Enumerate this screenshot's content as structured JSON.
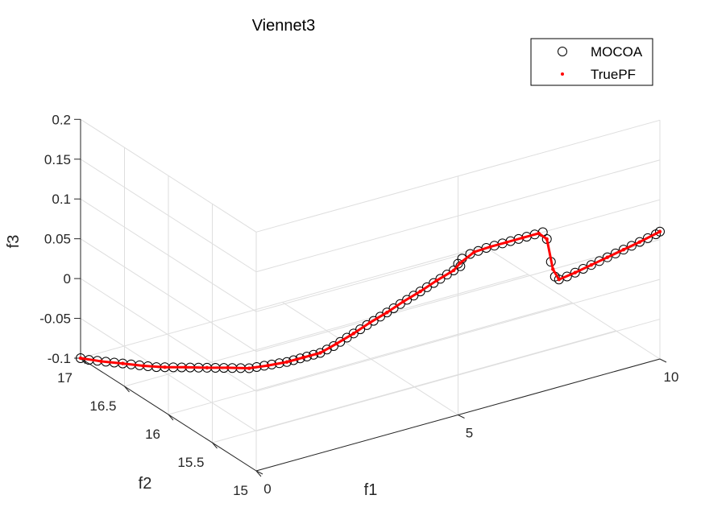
{
  "chart_data": {
    "type": "scatter",
    "title": "Viennet3",
    "xlabel": "f1",
    "ylabel": "f2",
    "zlabel": "f3",
    "xlim": [
      0,
      10
    ],
    "ylim": [
      15,
      17
    ],
    "zlim": [
      -0.1,
      0.2
    ],
    "xticks": [
      0,
      5,
      10
    ],
    "yticks": [
      15,
      15.5,
      16,
      16.5,
      17
    ],
    "zticks": [
      -0.1,
      -0.05,
      0,
      0.05,
      0.1,
      0.15,
      0.2
    ],
    "xtick_labels": [
      "0",
      "5",
      "10"
    ],
    "ytick_labels": [
      "15",
      "15.5",
      "16",
      "16.5",
      "17"
    ],
    "ztick_labels": [
      "-0.1",
      "-0.05",
      "0",
      "0.05",
      "0.1",
      "0.15",
      "0.2"
    ],
    "grid": true,
    "legend_position": "top-right",
    "legend": [
      "MOCOA",
      "TruePF"
    ],
    "series": [
      {
        "name": "MOCOA",
        "marker": "circle",
        "color": "#000000",
        "points": [
          [
            0.0,
            17.0,
            -0.1
          ],
          [
            0.1,
            16.95,
            -0.1
          ],
          [
            0.2,
            16.9,
            -0.099
          ],
          [
            0.3,
            16.85,
            -0.098
          ],
          [
            0.4,
            16.8,
            -0.097
          ],
          [
            0.5,
            16.75,
            -0.096
          ],
          [
            0.6,
            16.7,
            -0.095
          ],
          [
            0.7,
            16.65,
            -0.094
          ],
          [
            0.8,
            16.6,
            -0.093
          ],
          [
            0.9,
            16.55,
            -0.092
          ],
          [
            1.0,
            16.5,
            -0.09
          ],
          [
            1.1,
            16.45,
            -0.088
          ],
          [
            1.2,
            16.4,
            -0.086
          ],
          [
            1.3,
            16.35,
            -0.084
          ],
          [
            1.4,
            16.3,
            -0.082
          ],
          [
            1.5,
            16.25,
            -0.08
          ],
          [
            1.6,
            16.2,
            -0.078
          ],
          [
            1.7,
            16.15,
            -0.076
          ],
          [
            1.8,
            16.1,
            -0.074
          ],
          [
            1.9,
            16.05,
            -0.072
          ],
          [
            2.0,
            16.0,
            -0.07
          ],
          [
            2.1,
            15.96,
            -0.067
          ],
          [
            2.2,
            15.92,
            -0.064
          ],
          [
            2.3,
            15.88,
            -0.061
          ],
          [
            2.4,
            15.84,
            -0.058
          ],
          [
            2.5,
            15.8,
            -0.055
          ],
          [
            2.6,
            15.77,
            -0.052
          ],
          [
            2.7,
            15.74,
            -0.049
          ],
          [
            2.8,
            15.71,
            -0.046
          ],
          [
            2.9,
            15.68,
            -0.043
          ],
          [
            3.0,
            15.65,
            -0.04
          ],
          [
            3.1,
            15.62,
            -0.035
          ],
          [
            3.2,
            15.59,
            -0.03
          ],
          [
            3.3,
            15.56,
            -0.024
          ],
          [
            3.4,
            15.53,
            -0.018
          ],
          [
            3.5,
            15.5,
            -0.012
          ],
          [
            3.6,
            15.47,
            -0.006
          ],
          [
            3.7,
            15.44,
            0.0
          ],
          [
            3.8,
            15.41,
            0.006
          ],
          [
            3.9,
            15.38,
            0.012
          ],
          [
            4.0,
            15.35,
            0.018
          ],
          [
            4.1,
            15.32,
            0.024
          ],
          [
            4.2,
            15.29,
            0.03
          ],
          [
            4.3,
            15.26,
            0.036
          ],
          [
            4.4,
            15.23,
            0.042
          ],
          [
            4.5,
            15.2,
            0.048
          ],
          [
            4.6,
            15.17,
            0.054
          ],
          [
            4.7,
            15.14,
            0.06
          ],
          [
            4.8,
            15.11,
            0.066
          ],
          [
            4.9,
            15.08,
            0.072
          ],
          [
            5.0,
            15.05,
            0.078
          ],
          [
            5.1,
            15.02,
            0.084
          ],
          [
            5.0,
            15.0,
            0.09
          ],
          [
            5.1,
            15.0,
            0.095
          ],
          [
            5.3,
            15.0,
            0.098
          ],
          [
            5.5,
            15.0,
            0.099
          ],
          [
            5.7,
            15.0,
            0.1
          ],
          [
            5.9,
            15.0,
            0.1
          ],
          [
            6.1,
            15.0,
            0.1
          ],
          [
            6.3,
            15.0,
            0.1
          ],
          [
            6.5,
            15.0,
            0.1
          ],
          [
            6.7,
            15.0,
            0.1
          ],
          [
            6.9,
            15.0,
            0.1
          ],
          [
            7.1,
            15.0,
            0.1
          ],
          [
            7.2,
            15.0,
            0.09
          ],
          [
            7.3,
            15.0,
            0.06
          ],
          [
            7.4,
            15.0,
            0.04
          ],
          [
            7.5,
            15.0,
            0.035
          ],
          [
            7.7,
            15.0,
            0.036
          ],
          [
            7.9,
            15.0,
            0.038
          ],
          [
            8.1,
            15.0,
            0.04
          ],
          [
            8.3,
            15.0,
            0.042
          ],
          [
            8.5,
            15.0,
            0.044
          ],
          [
            8.7,
            15.0,
            0.046
          ],
          [
            8.9,
            15.0,
            0.048
          ],
          [
            9.1,
            15.0,
            0.05
          ],
          [
            9.3,
            15.0,
            0.052
          ],
          [
            9.5,
            15.0,
            0.054
          ],
          [
            9.7,
            15.0,
            0.056
          ],
          [
            9.9,
            15.0,
            0.058
          ],
          [
            10.0,
            15.0,
            0.06
          ]
        ]
      },
      {
        "name": "TruePF",
        "marker": "dot",
        "color": "#ff0000",
        "points": [
          [
            0.0,
            17.0,
            -0.1
          ],
          [
            0.25,
            16.88,
            -0.099
          ],
          [
            0.5,
            16.75,
            -0.096
          ],
          [
            0.75,
            16.63,
            -0.094
          ],
          [
            1.0,
            16.5,
            -0.09
          ],
          [
            1.25,
            16.38,
            -0.085
          ],
          [
            1.5,
            16.25,
            -0.08
          ],
          [
            1.75,
            16.13,
            -0.075
          ],
          [
            2.0,
            16.0,
            -0.07
          ],
          [
            2.25,
            15.9,
            -0.063
          ],
          [
            2.5,
            15.8,
            -0.055
          ],
          [
            2.75,
            15.73,
            -0.048
          ],
          [
            3.0,
            15.65,
            -0.04
          ],
          [
            3.25,
            15.58,
            -0.027
          ],
          [
            3.5,
            15.5,
            -0.012
          ],
          [
            3.75,
            15.43,
            0.003
          ],
          [
            4.0,
            15.35,
            0.018
          ],
          [
            4.25,
            15.28,
            0.033
          ],
          [
            4.5,
            15.2,
            0.048
          ],
          [
            4.75,
            15.13,
            0.063
          ],
          [
            5.0,
            15.05,
            0.078
          ],
          [
            5.05,
            15.0,
            0.09
          ],
          [
            5.4,
            15.0,
            0.099
          ],
          [
            5.8,
            15.0,
            0.1
          ],
          [
            6.2,
            15.0,
            0.1
          ],
          [
            6.6,
            15.0,
            0.1
          ],
          [
            7.0,
            15.0,
            0.1
          ],
          [
            7.2,
            15.0,
            0.09
          ],
          [
            7.35,
            15.0,
            0.05
          ],
          [
            7.5,
            15.0,
            0.035
          ],
          [
            7.9,
            15.0,
            0.038
          ],
          [
            8.3,
            15.0,
            0.042
          ],
          [
            8.7,
            15.0,
            0.046
          ],
          [
            9.1,
            15.0,
            0.05
          ],
          [
            9.5,
            15.0,
            0.054
          ],
          [
            10.0,
            15.0,
            0.06
          ]
        ]
      }
    ]
  }
}
